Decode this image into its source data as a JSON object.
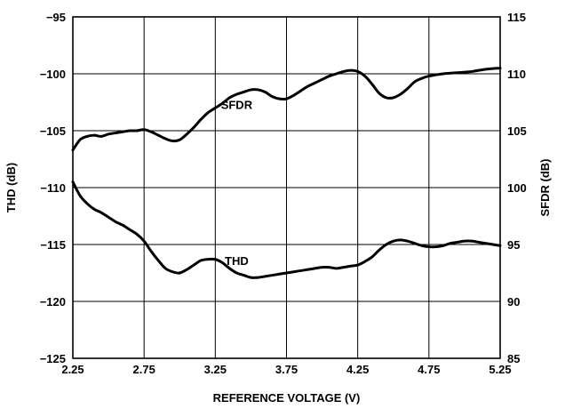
{
  "chart_data": {
    "type": "line",
    "xlabel": "REFERENCE VOLTAGE (V)",
    "ylabel_left": "THD (dB)",
    "ylabel_right": "SFDR (dB)",
    "xlim": [
      2.25,
      5.25
    ],
    "ylim_left": [
      -125,
      -95
    ],
    "ylim_right": [
      85,
      115
    ],
    "x_ticks": [
      "2.25",
      "2.75",
      "3.25",
      "3.75",
      "4.25",
      "4.75",
      "5.25"
    ],
    "y_ticks_left": [
      "−95",
      "−100",
      "−105",
      "−110",
      "−115",
      "−120",
      "−125"
    ],
    "y_ticks_right": [
      "115",
      "110",
      "105",
      "100",
      "95",
      "90",
      "85"
    ],
    "grid": true,
    "series": [
      {
        "name": "SFDR",
        "axis": "right",
        "color": "#000000",
        "x": [
          2.25,
          2.3,
          2.35,
          2.4,
          2.45,
          2.5,
          2.55,
          2.6,
          2.65,
          2.7,
          2.75,
          2.8,
          2.85,
          2.9,
          2.95,
          3.0,
          3.05,
          3.1,
          3.15,
          3.2,
          3.25,
          3.3,
          3.35,
          3.4,
          3.45,
          3.5,
          3.55,
          3.6,
          3.65,
          3.7,
          3.75,
          3.8,
          3.85,
          3.9,
          3.95,
          4.0,
          4.05,
          4.1,
          4.15,
          4.2,
          4.25,
          4.3,
          4.35,
          4.4,
          4.45,
          4.5,
          4.55,
          4.6,
          4.65,
          4.7,
          4.75,
          4.85,
          4.95,
          5.05,
          5.15,
          5.25
        ],
        "values": [
          103.3,
          104.2,
          104.5,
          104.6,
          104.5,
          104.7,
          104.8,
          104.9,
          105.0,
          105.0,
          105.1,
          104.9,
          104.6,
          104.3,
          104.1,
          104.2,
          104.7,
          105.3,
          106.0,
          106.6,
          107.0,
          107.4,
          107.9,
          108.2,
          108.4,
          108.6,
          108.6,
          108.4,
          108.0,
          107.8,
          107.8,
          108.1,
          108.5,
          108.9,
          109.2,
          109.5,
          109.8,
          110.0,
          110.2,
          110.3,
          110.2,
          109.8,
          109.1,
          108.3,
          107.9,
          107.9,
          108.2,
          108.7,
          109.3,
          109.6,
          109.8,
          110.0,
          110.1,
          110.2,
          110.4,
          110.5
        ]
      },
      {
        "name": "THD",
        "axis": "left",
        "color": "#000000",
        "x": [
          2.25,
          2.3,
          2.35,
          2.4,
          2.45,
          2.5,
          2.55,
          2.6,
          2.65,
          2.7,
          2.75,
          2.8,
          2.85,
          2.9,
          2.95,
          3.0,
          3.05,
          3.1,
          3.15,
          3.2,
          3.25,
          3.3,
          3.35,
          3.4,
          3.45,
          3.5,
          3.55,
          3.6,
          3.65,
          3.7,
          3.75,
          3.8,
          3.85,
          3.9,
          3.95,
          4.0,
          4.05,
          4.1,
          4.15,
          4.2,
          4.25,
          4.3,
          4.35,
          4.4,
          4.45,
          4.5,
          4.55,
          4.6,
          4.65,
          4.7,
          4.75,
          4.8,
          4.85,
          4.9,
          4.95,
          5.0,
          5.05,
          5.1,
          5.15,
          5.2,
          5.25
        ],
        "values": [
          -109.5,
          -110.7,
          -111.4,
          -111.9,
          -112.2,
          -112.6,
          -113.0,
          -113.3,
          -113.7,
          -114.1,
          -114.7,
          -115.6,
          -116.4,
          -117.1,
          -117.4,
          -117.5,
          -117.2,
          -116.8,
          -116.4,
          -116.3,
          -116.3,
          -116.6,
          -117.1,
          -117.5,
          -117.7,
          -117.9,
          -117.9,
          -117.8,
          -117.7,
          -117.6,
          -117.5,
          -117.4,
          -117.3,
          -117.2,
          -117.1,
          -117.0,
          -117.0,
          -117.1,
          -117.0,
          -116.9,
          -116.8,
          -116.5,
          -116.1,
          -115.5,
          -115.0,
          -114.7,
          -114.6,
          -114.7,
          -114.9,
          -115.1,
          -115.2,
          -115.2,
          -115.1,
          -114.9,
          -114.8,
          -114.7,
          -114.7,
          -114.8,
          -114.9,
          -115.0,
          -115.1
        ]
      }
    ]
  }
}
